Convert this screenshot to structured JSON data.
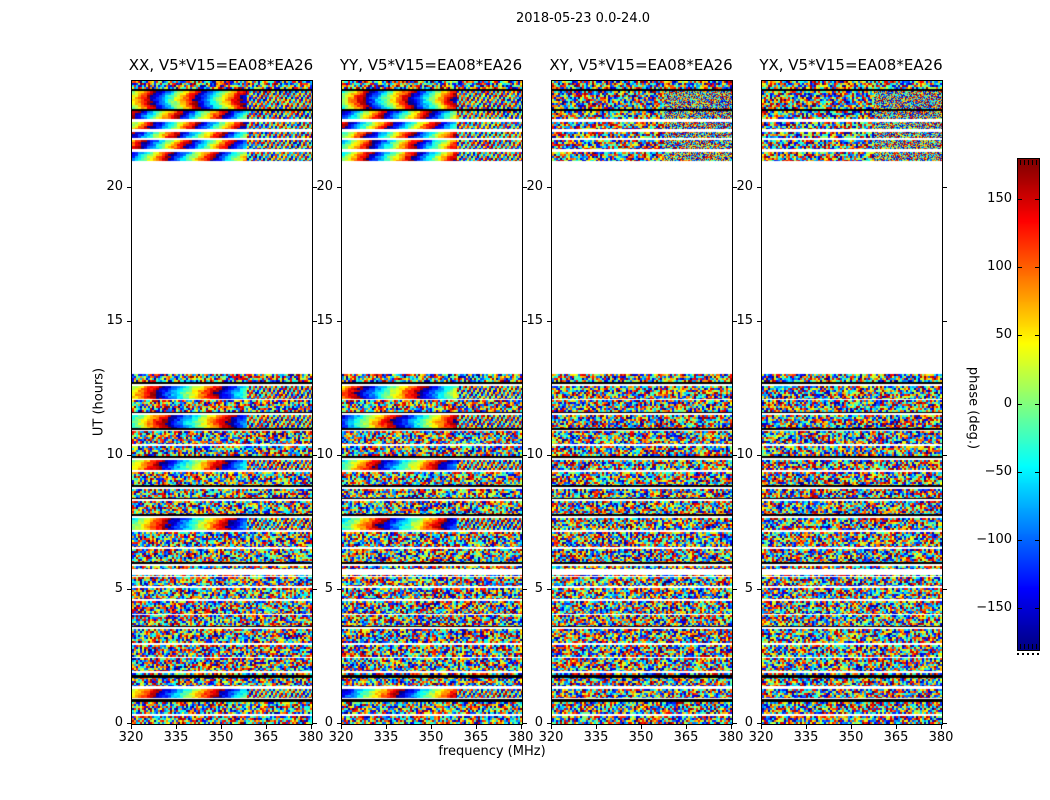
{
  "figure": {
    "title": "2018-05-23 0.0-24.0",
    "background": "#ffffff",
    "text_color": "#000000"
  },
  "chart_data": {
    "type": "heatmap",
    "title": "2018-05-23 0.0-24.0",
    "xlabel": "frequency (MHz)",
    "ylabel": "UT (hours)",
    "x_range": [
      320,
      380
    ],
    "y_range": [
      0,
      24
    ],
    "xticks": [
      320,
      335,
      350,
      365,
      380
    ],
    "yticks": [
      0,
      5,
      10,
      15,
      20
    ],
    "grid": false,
    "panels": [
      {
        "title": "XX, V5*V15=EA08*EA26",
        "pol": "XX",
        "smooth_phase": true
      },
      {
        "title": "YY, V5*V15=EA08*EA26",
        "pol": "YY",
        "smooth_phase": true
      },
      {
        "title": "XY, V5*V15=EA08*EA26",
        "pol": "XY",
        "smooth_phase": false
      },
      {
        "title": "YX, V5*V15=EA08*EA26",
        "pol": "YX",
        "smooth_phase": false
      }
    ],
    "colorbar": {
      "label": "phase (deg.)",
      "colormap": "jet",
      "range": [
        -180,
        180
      ],
      "tick_values": [
        150,
        100,
        50,
        0,
        -50,
        -100,
        -150
      ],
      "tick_labels": [
        "150",
        "100",
        "50",
        "0",
        "−50",
        "−100",
        "−150"
      ]
    },
    "time_structure": {
      "cal_band": [
        [
          24.0,
          23.72,
          "noise"
        ],
        [
          23.72,
          23.64,
          "black"
        ],
        [
          23.64,
          22.97,
          "stripes"
        ],
        [
          22.97,
          22.89,
          "black"
        ],
        [
          22.89,
          22.59,
          "stripes"
        ],
        [
          22.59,
          22.48,
          "gap"
        ],
        [
          22.48,
          22.22,
          "stripes"
        ],
        [
          22.22,
          22.11,
          "gap"
        ],
        [
          22.11,
          21.89,
          "stripes"
        ],
        [
          21.89,
          21.81,
          "gap"
        ],
        [
          21.81,
          21.47,
          "stripes"
        ],
        [
          21.47,
          21.36,
          "gap"
        ],
        [
          21.36,
          21.03,
          "stripes"
        ]
      ],
      "scan_region": {
        "seed": 7,
        "top": 13.07,
        "bottom": 0.0,
        "band_min": 0.3,
        "band_max": 0.55,
        "gap_min": 0.05,
        "gap_max": 0.09,
        "black_gap_prob": 0.3
      },
      "smooth_hours": [
        12.45,
        11.45,
        9.85,
        9.5,
        7.55,
        1.2
      ],
      "white_bands": [
        [
          5.55,
          5.8
        ]
      ],
      "black_bands": [
        [
          1.7,
          1.84
        ],
        [
          0.82,
          0.92
        ]
      ]
    }
  }
}
